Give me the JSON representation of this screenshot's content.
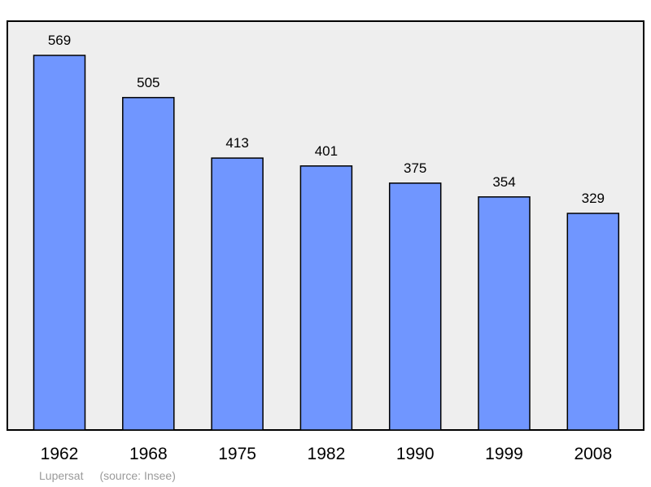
{
  "chart_data": {
    "type": "bar",
    "categories": [
      "1962",
      "1968",
      "1975",
      "1982",
      "1990",
      "1999",
      "2008"
    ],
    "values": [
      569,
      505,
      413,
      401,
      375,
      354,
      329
    ],
    "value_labels": [
      "569",
      "505",
      "413",
      "401",
      "375",
      "354",
      "329"
    ],
    "title": "",
    "xlabel": "",
    "ylabel": "",
    "ylim": [
      0,
      600
    ],
    "grid": false,
    "legend": "none",
    "colors": {
      "bar": "#7096ff",
      "plot_background": "#eeeeee",
      "border": "#000000"
    }
  },
  "caption": {
    "place": "Lupersat",
    "source": "(source: Insee)"
  }
}
